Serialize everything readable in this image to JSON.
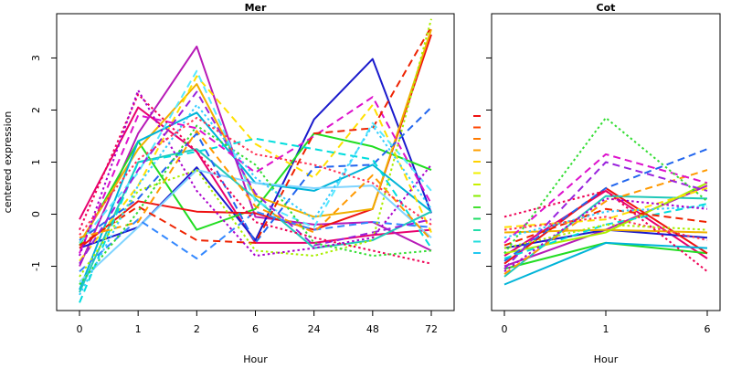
{
  "chart_data": [
    {
      "type": "line",
      "title": "Mer",
      "xlabel": "Hour",
      "ylabel": "centered expression",
      "categories": [
        "0",
        "1",
        "2",
        "6",
        "24",
        "48",
        "72"
      ],
      "yticks": [
        -1,
        0,
        1,
        2,
        3
      ],
      "ylim": [
        -1.85,
        3.85
      ],
      "grid": false,
      "series": [
        {
          "values": [
            -0.1,
            2.05,
            1.2,
            -0.55,
            -0.55,
            -0.4,
            -0.3
          ],
          "color": "#e8006e",
          "dash": "solid"
        },
        {
          "values": [
            -1.0,
            1.55,
            3.22,
            -0.05,
            -0.2,
            -0.15,
            -0.7
          ],
          "color": "#b71ab7",
          "dash": "solid"
        },
        {
          "values": [
            -0.65,
            -0.25,
            0.9,
            -0.5,
            1.82,
            2.98,
            0.02
          ],
          "color": "#1a1acc",
          "dash": "solid"
        },
        {
          "values": [
            -0.6,
            1.4,
            -0.3,
            0.1,
            1.55,
            1.3,
            0.85
          ],
          "color": "#22dd22",
          "dash": "solid"
        },
        {
          "values": [
            -0.65,
            0.25,
            0.05,
            0.02,
            -0.3,
            0.1,
            3.45
          ],
          "color": "#ee1111",
          "dash": "solid"
        },
        {
          "values": [
            -0.55,
            1.25,
            2.5,
            0.35,
            -0.05,
            0.1,
            3.55
          ],
          "color": "#f0b000",
          "dash": "solid"
        },
        {
          "values": [
            -1.45,
            1.4,
            1.95,
            0.6,
            0.45,
            0.95,
            0.05
          ],
          "color": "#00b4d8",
          "dash": "solid"
        },
        {
          "values": [
            -1.3,
            -0.25,
            0.85,
            0.6,
            0.5,
            0.55,
            -0.45
          ],
          "color": "#7fd4ff",
          "dash": "solid"
        },
        {
          "values": [
            -1.5,
            1.0,
            1.25,
            0.3,
            -0.65,
            -0.5,
            0.05
          ],
          "color": "#20c8b8",
          "dash": "solid"
        },
        {
          "values": [
            -0.9,
            0.55,
            2.65,
            1.35,
            0.7,
            2.1,
            -0.35
          ],
          "color": "#ffe000",
          "dash": "dashed"
        },
        {
          "values": [
            -0.75,
            1.9,
            1.65,
            0.8,
            1.5,
            2.25,
            0.2
          ],
          "color": "#dd11cc",
          "dash": "dashed"
        },
        {
          "values": [
            -0.5,
            0.3,
            1.55,
            -0.55,
            0.9,
            0.95,
            2.05
          ],
          "color": "#2266ee",
          "dash": "dashed"
        },
        {
          "values": [
            -0.6,
            0.15,
            -0.5,
            -0.55,
            1.55,
            1.65,
            3.6
          ],
          "color": "#ee2200",
          "dash": "dashed"
        },
        {
          "values": [
            -1.7,
            1.0,
            1.2,
            1.45,
            1.25,
            1.05,
            -0.65
          ],
          "color": "#00dddd",
          "dash": "dashed"
        },
        {
          "values": [
            -1.1,
            -0.1,
            -0.85,
            0.05,
            -0.3,
            -0.15,
            -0.25
          ],
          "color": "#3388ff",
          "dash": "dashed"
        },
        {
          "values": [
            -0.55,
            0.8,
            2.75,
            0.25,
            -0.25,
            1.75,
            0.45
          ],
          "color": "#55e8ff",
          "dash": "dashed"
        },
        {
          "values": [
            -0.45,
            -0.15,
            1.6,
            0.15,
            -0.35,
            0.75,
            -0.5
          ],
          "color": "#ff9900",
          "dash": "dashed"
        },
        {
          "values": [
            -0.95,
            0.85,
            2.35,
            0.4,
            -0.6,
            -0.35,
            -0.1
          ],
          "color": "#9922dd",
          "dash": "dashed"
        },
        {
          "values": [
            -1.2,
            0.45,
            0.85,
            -0.7,
            -0.8,
            -0.5,
            3.75
          ],
          "color": "#aaee00",
          "dash": "dotted"
        },
        {
          "values": [
            -0.3,
            2.3,
            1.2,
            -0.15,
            -0.45,
            -0.7,
            -0.95
          ],
          "color": "#ee0055",
          "dash": "dotted"
        },
        {
          "values": [
            -0.8,
            2.38,
            0.45,
            -0.8,
            -0.65,
            -0.45,
            0.95
          ],
          "color": "#aa00cc",
          "dash": "dotted"
        },
        {
          "values": [
            -1.35,
            0.05,
            1.7,
            0.95,
            -0.55,
            -0.8,
            -0.7
          ],
          "color": "#33dd33",
          "dash": "dotted"
        },
        {
          "values": [
            -1.55,
            0.55,
            2.1,
            0.7,
            -0.1,
            1.7,
            0.1
          ],
          "color": "#33ccff",
          "dash": "dotted"
        },
        {
          "values": [
            -0.4,
            1.05,
            1.85,
            1.15,
            0.95,
            0.6,
            -0.2
          ],
          "color": "#ff3355",
          "dash": "dotted"
        }
      ]
    },
    {
      "type": "line",
      "title": "Cot",
      "xlabel": "Hour",
      "ylabel": "",
      "categories": [
        "0",
        "1",
        "6"
      ],
      "ylim": [
        -1.85,
        3.85
      ],
      "grid": false,
      "series": [
        {
          "values": [
            -0.8,
            0.45,
            -0.85
          ],
          "color": "#e8006e",
          "dash": "solid"
        },
        {
          "values": [
            -1.0,
            -0.3,
            0.55
          ],
          "color": "#b71ab7",
          "dash": "solid"
        },
        {
          "values": [
            -0.65,
            -0.3,
            -0.45
          ],
          "color": "#1a1acc",
          "dash": "solid"
        },
        {
          "values": [
            -1.05,
            -0.55,
            -0.75
          ],
          "color": "#22dd22",
          "dash": "solid"
        },
        {
          "values": [
            -0.95,
            0.5,
            -0.75
          ],
          "color": "#ee1111",
          "dash": "solid"
        },
        {
          "values": [
            -0.35,
            -0.3,
            -0.35
          ],
          "color": "#f0b000",
          "dash": "solid"
        },
        {
          "values": [
            -1.35,
            -0.55,
            -0.65
          ],
          "color": "#00b4d8",
          "dash": "solid"
        },
        {
          "values": [
            -1.2,
            0.35,
            0.3
          ],
          "color": "#20c8b8",
          "dash": "solid"
        },
        {
          "values": [
            -0.75,
            -0.35,
            0.6
          ],
          "color": "#aaee00",
          "dash": "solid"
        },
        {
          "values": [
            -0.9,
            0.5,
            1.25
          ],
          "color": "#2266ee",
          "dash": "dashed"
        },
        {
          "values": [
            -1.15,
            0.25,
            0.85
          ],
          "color": "#ff9900",
          "dash": "dashed"
        },
        {
          "values": [
            -0.55,
            1.15,
            0.6
          ],
          "color": "#dd11cc",
          "dash": "dashed"
        },
        {
          "values": [
            -0.85,
            -0.2,
            0.2
          ],
          "color": "#00dddd",
          "dash": "dashed"
        },
        {
          "values": [
            -0.6,
            0.1,
            -0.15
          ],
          "color": "#ee2200",
          "dash": "dashed"
        },
        {
          "values": [
            -0.25,
            -0.1,
            0.5
          ],
          "color": "#ffe000",
          "dash": "dashed"
        },
        {
          "values": [
            -1.05,
            1.0,
            0.45
          ],
          "color": "#9922dd",
          "dash": "dashed"
        },
        {
          "values": [
            -0.75,
            1.85,
            0.25
          ],
          "color": "#33dd33",
          "dash": "dotted"
        },
        {
          "values": [
            -0.05,
            0.45,
            -1.1
          ],
          "color": "#ee0055",
          "dash": "dotted"
        },
        {
          "values": [
            -0.45,
            0.05,
            0.15
          ],
          "color": "#33ccff",
          "dash": "dotted"
        },
        {
          "values": [
            -0.3,
            -0.05,
            -0.5
          ],
          "color": "#ff3355",
          "dash": "dotted"
        },
        {
          "values": [
            -1.1,
            0.3,
            0.1
          ],
          "color": "#aa00cc",
          "dash": "dotted"
        },
        {
          "values": [
            -0.65,
            -0.2,
            -0.3
          ],
          "color": "#aaee00",
          "dash": "dotted"
        }
      ],
      "legend": {
        "placement": "left",
        "colors": [
          "#ee1111",
          "#ff4400",
          "#ff7a00",
          "#ffa000",
          "#ffd200",
          "#f0f000",
          "#c8f000",
          "#88ee00",
          "#44e030",
          "#22dd66",
          "#22ddaa",
          "#22dddd",
          "#22c8f0"
        ]
      }
    }
  ]
}
